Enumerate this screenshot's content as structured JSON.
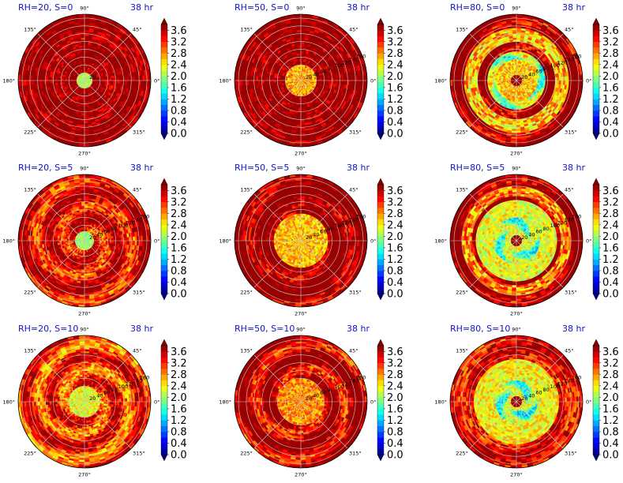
{
  "chart_data": {
    "type": "heatmap",
    "projection": "polar",
    "grid": true,
    "colormap": "jet",
    "colorbar": {
      "ticks": [
        "0.0",
        "0.4",
        "0.8",
        "1.2",
        "1.6",
        "2.0",
        "2.4",
        "2.8",
        "3.2",
        "3.6"
      ],
      "levels": [
        0.0,
        0.2,
        0.4,
        0.6,
        0.8,
        1.0,
        1.2,
        1.4,
        1.6,
        1.8,
        2.0,
        2.2,
        2.4,
        2.6,
        2.8,
        3.0,
        3.2,
        3.4,
        3.6,
        3.8
      ],
      "extend": "both"
    },
    "angle_ticks": [
      "90°",
      "45°",
      "0°",
      "315°",
      "270°",
      "225°",
      "180°",
      "135°"
    ],
    "radial_ticks": [
      "20",
      "40",
      "60",
      "80",
      "100",
      "120",
      "140",
      "160"
    ],
    "panels": [
      {
        "title": "RH=20, S=0",
        "time": "38 hr",
        "core_value": 2.1,
        "core_radius": 20,
        "outer_value": 3.8,
        "eye_dark": false,
        "ring": null,
        "band": null,
        "spiral": 0.15,
        "radial_labels_shown": [
          "20"
        ]
      },
      {
        "title": "RH=50, S=0",
        "time": "38 hr",
        "core_value": 2.7,
        "core_radius": 40,
        "outer_value": 3.8,
        "eye_dark": false,
        "ring": null,
        "band": null,
        "spiral": 0.05,
        "radial_labels_shown": [
          "20",
          "40",
          "60",
          "80",
          "100",
          "120",
          "140",
          "160"
        ]
      },
      {
        "title": "RH=80, S=0",
        "time": "38 hr",
        "core_value": 2.6,
        "core_radius": 75,
        "outer_value": 3.8,
        "eye_dark": true,
        "ring": [
          55,
          75,
          2.0
        ],
        "band": [
          100,
          135,
          2.6
        ],
        "spiral": 0.6,
        "radial_labels_shown": [
          "20",
          "40",
          "60",
          "80",
          "100",
          "120",
          "140",
          "160"
        ]
      },
      {
        "title": "RH=20, S=5",
        "time": "38 hr",
        "core_value": 2.0,
        "core_radius": 25,
        "outer_value": 3.4,
        "eye_dark": false,
        "ring": null,
        "band": null,
        "spiral": 0.5,
        "radial_labels_shown": [
          "20",
          "40",
          "60",
          "80",
          "100",
          "120",
          "140",
          "160"
        ]
      },
      {
        "title": "RH=50, S=5",
        "time": "38 hr",
        "core_value": 2.6,
        "core_radius": 70,
        "outer_value": 3.8,
        "eye_dark": false,
        "ring": null,
        "band": null,
        "spiral": 0.4,
        "radial_labels_shown": [
          "20",
          "40",
          "60",
          "80",
          "100",
          "120",
          "140",
          "160"
        ]
      },
      {
        "title": "RH=80, S=5",
        "time": "38 hr",
        "core_value": 2.3,
        "core_radius": 105,
        "outer_value": 3.8,
        "eye_dark": true,
        "ring": [
          30,
          60,
          1.9
        ],
        "band": [
          115,
          140,
          2.8
        ],
        "spiral": 0.5,
        "radial_labels_shown": [
          "20",
          "40",
          "60",
          "80",
          "100",
          "120",
          "140",
          "160"
        ]
      },
      {
        "title": "RH=20, S=10",
        "time": "38 hr",
        "core_value": 2.3,
        "core_radius": 40,
        "outer_value": 3.2,
        "eye_dark": false,
        "ring": null,
        "band": null,
        "spiral": 0.6,
        "radial_labels_shown": [
          "20",
          "40",
          "60",
          "80",
          "100",
          "120",
          "140",
          "160"
        ]
      },
      {
        "title": "RH=50, S=10",
        "time": "38 hr",
        "core_value": 2.8,
        "core_radius": 60,
        "outer_value": 3.6,
        "eye_dark": false,
        "ring": null,
        "band": null,
        "spiral": 0.6,
        "radial_labels_shown": [
          "20",
          "40",
          "60",
          "80",
          "100",
          "120",
          "140",
          "160"
        ]
      },
      {
        "title": "RH=80, S=10",
        "time": "38 hr",
        "core_value": 2.4,
        "core_radius": 110,
        "outer_value": 3.4,
        "eye_dark": true,
        "ring": [
          25,
          55,
          1.8
        ],
        "band": null,
        "spiral": 0.3,
        "radial_labels_shown": [
          "20",
          "40",
          "60",
          "80",
          "100",
          "120",
          "140",
          "160"
        ]
      }
    ]
  }
}
